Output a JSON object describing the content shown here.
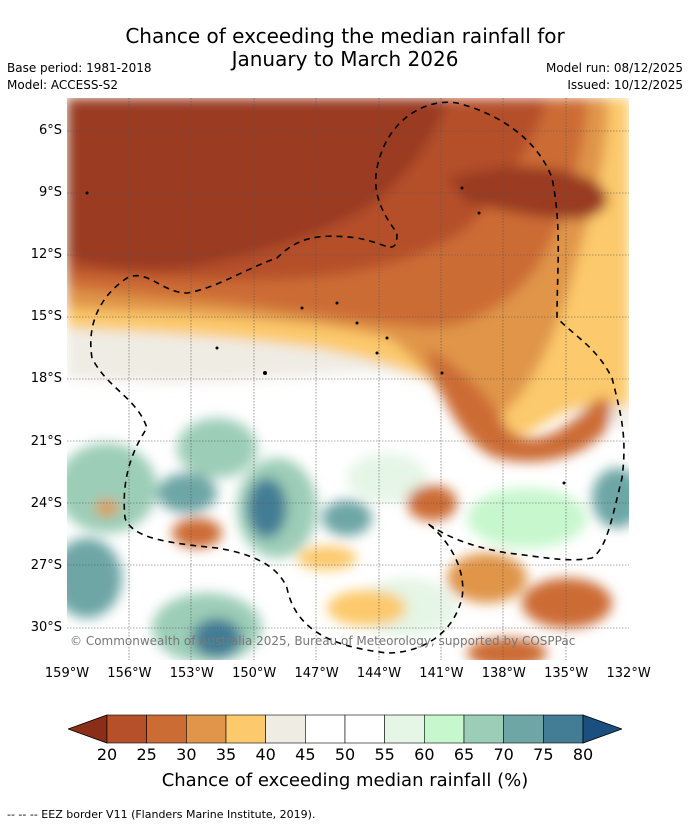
{
  "header": {
    "title_line1": "Chance of exceeding the median rainfall for",
    "title_line2": "January to March 2026",
    "base_period": "Base period: 1981-2018",
    "model": "Model: ACCESS-S2",
    "model_run": "Model run: 08/12/2025",
    "issued": "Issued: 10/12/2025"
  },
  "map": {
    "lat_labels": [
      "6°S",
      "9°S",
      "12°S",
      "15°S",
      "18°S",
      "21°S",
      "24°S",
      "27°S",
      "30°S"
    ],
    "lon_labels": [
      "159°W",
      "156°W",
      "153°W",
      "150°W",
      "147°W",
      "144°W",
      "141°W",
      "138°W",
      "135°W",
      "132°W"
    ],
    "credit": "© Commonwealth of Australia 2025, Bureau of Meteorology, supported by COSPPac"
  },
  "colorbar": {
    "labels": [
      "20",
      "25",
      "30",
      "35",
      "40",
      "45",
      "50",
      "55",
      "60",
      "65",
      "70",
      "75",
      "80"
    ],
    "colors": [
      "#9a3b20",
      "#b5502a",
      "#cc6c35",
      "#e0954a",
      "#fcc96c",
      "#efece4",
      "#ffffff",
      "#ffffff",
      "#e5f5e6",
      "#c7f7cd",
      "#9ccdb7",
      "#6ea6a6",
      "#437d95"
    ],
    "low_cap_color": "#8a2e18",
    "high_cap_color": "#1a4f80",
    "title": "Chance of exceeding median rainfall (%)"
  },
  "footer": {
    "text": "--  --  -- EEZ border V11 (Flanders Marine Institute, 2019)."
  }
}
